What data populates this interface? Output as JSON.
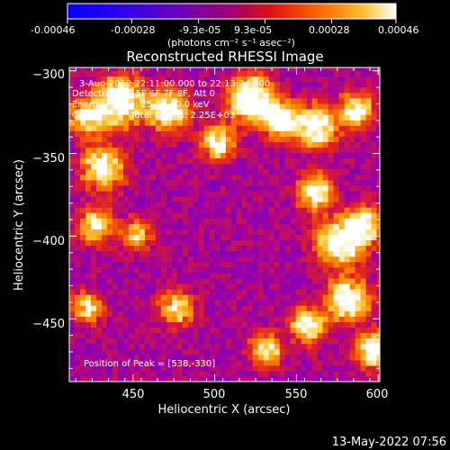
{
  "colorbar": {
    "tick_labels": [
      "-0.00046",
      "-0.00028",
      "-9.3e-05",
      "9.3e-05",
      "0.00028",
      "0.00046"
    ],
    "tick_values": [
      -0.00046,
      -0.00028,
      -9.3e-05,
      9.3e-05,
      0.00028,
      0.00046
    ],
    "range": [
      -0.00046,
      0.00046
    ],
    "units_label": "(photons cm⁻² s⁻¹ asec⁻²)",
    "colormap": [
      "#0000ff",
      "#5a00d8",
      "#a000a0",
      "#e02020",
      "#ff8000",
      "#ffd040",
      "#ffffff"
    ]
  },
  "chart_data": {
    "type": "heatmap",
    "title": "Reconstructed RHESSI Image",
    "xlabel": "Heliocentric X (arcsec)",
    "ylabel": "Heliocentric Y (arcsec)",
    "xlim": [
      411,
      601
    ],
    "ylim": [
      -488,
      -298
    ],
    "x_ticks": [
      450,
      500,
      550,
      600
    ],
    "y_ticks": [
      -450,
      -400,
      -350,
      -300
    ],
    "x_tick_labels": [
      "450",
      "500",
      "550",
      "600"
    ],
    "y_tick_labels": [
      "−450",
      "−400",
      "−350",
      "−300"
    ],
    "annotations": [
      "3-Aug-2012 22:11:00.000 to 22:13:24.000",
      "Detectors: 3F 5F 6F 7F 8F, Att 0",
      "Energy Range: 25.0 - 50.0 keV",
      "Clean",
      "Total counts: 2.25E+03",
      "Position of Peak = [538,-330]"
    ],
    "peak": [
      538,
      -330
    ],
    "timestamp": "13-May-2022 07:56"
  }
}
